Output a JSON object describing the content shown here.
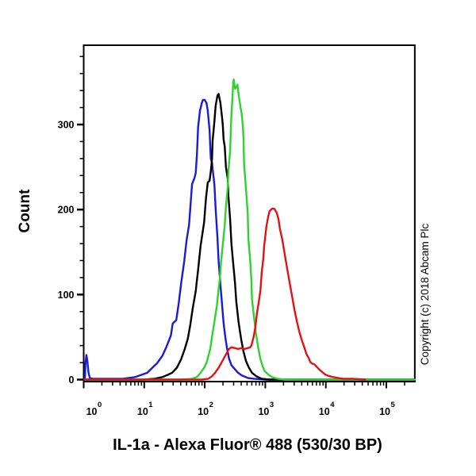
{
  "copyright": "Copyright (c) 2018 Abcam Plc",
  "chart_data": {
    "type": "line",
    "subtype": "flow-cytometry-histogram",
    "title": "",
    "xlabel": "IL-1a - Alexa Fluor® 488 (530/30 BP)",
    "ylabel": "Count",
    "x_scale": "log10",
    "xlim_log10": [
      0,
      5.47
    ],
    "ylim": [
      0,
      393
    ],
    "grid": false,
    "legend": "none",
    "x_ticks": [
      {
        "base": "10",
        "exp": "0"
      },
      {
        "base": "10",
        "exp": "1"
      },
      {
        "base": "10",
        "exp": "2"
      },
      {
        "base": "10",
        "exp": "3"
      },
      {
        "base": "10",
        "exp": "4"
      },
      {
        "base": "10",
        "exp": "5"
      }
    ],
    "y_ticks": [
      0,
      100,
      200,
      300
    ],
    "y_minor_step": 20,
    "frame_color": "#000000",
    "series": [
      {
        "name": "blue-curve",
        "color": "#1a1ad9",
        "peak": {
          "x_log10": 1.97,
          "count": 329
        },
        "points": [
          [
            0.02,
            0
          ],
          [
            0.03,
            20
          ],
          [
            0.045,
            29
          ],
          [
            0.06,
            22
          ],
          [
            0.08,
            8
          ],
          [
            0.1,
            2
          ],
          [
            0.15,
            1
          ],
          [
            0.45,
            1
          ],
          [
            0.65,
            1
          ],
          [
            0.85,
            3
          ],
          [
            1.05,
            8
          ],
          [
            1.15,
            15
          ],
          [
            1.21,
            19
          ],
          [
            1.3,
            28
          ],
          [
            1.37,
            39
          ],
          [
            1.44,
            52
          ],
          [
            1.47,
            66
          ],
          [
            1.5,
            68
          ],
          [
            1.53,
            70
          ],
          [
            1.57,
            90
          ],
          [
            1.61,
            113
          ],
          [
            1.66,
            139
          ],
          [
            1.7,
            164
          ],
          [
            1.74,
            182
          ],
          [
            1.76,
            201
          ],
          [
            1.79,
            230
          ],
          [
            1.83,
            237
          ],
          [
            1.85,
            243
          ],
          [
            1.87,
            264
          ],
          [
            1.89,
            297
          ],
          [
            1.92,
            316
          ],
          [
            1.95,
            325
          ],
          [
            1.97,
            329
          ],
          [
            2.0,
            329
          ],
          [
            2.03,
            325
          ],
          [
            2.05,
            316
          ],
          [
            2.08,
            293
          ],
          [
            2.09,
            274
          ],
          [
            2.1,
            260
          ],
          [
            2.12,
            255
          ],
          [
            2.13,
            248
          ],
          [
            2.16,
            229
          ],
          [
            2.18,
            201
          ],
          [
            2.21,
            167
          ],
          [
            2.23,
            139
          ],
          [
            2.26,
            111
          ],
          [
            2.29,
            85
          ],
          [
            2.31,
            67
          ],
          [
            2.34,
            50
          ],
          [
            2.37,
            36
          ],
          [
            2.4,
            25
          ],
          [
            2.44,
            17
          ],
          [
            2.5,
            12
          ],
          [
            2.55,
            8
          ],
          [
            2.61,
            5
          ],
          [
            2.71,
            2
          ],
          [
            2.81,
            1
          ],
          [
            3.01,
            0
          ],
          [
            5.47,
            0
          ]
        ]
      },
      {
        "name": "black-curve",
        "color": "#000000",
        "peak": {
          "x_log10": 2.22,
          "count": 336
        },
        "points": [
          [
            0.01,
            0
          ],
          [
            0.98,
            0
          ],
          [
            1.17,
            1
          ],
          [
            1.3,
            3
          ],
          [
            1.4,
            6
          ],
          [
            1.46,
            8
          ],
          [
            1.54,
            14
          ],
          [
            1.61,
            24
          ],
          [
            1.67,
            36
          ],
          [
            1.72,
            48
          ],
          [
            1.76,
            64
          ],
          [
            1.8,
            83
          ],
          [
            1.85,
            104
          ],
          [
            1.89,
            129
          ],
          [
            1.93,
            157
          ],
          [
            1.99,
            185
          ],
          [
            2.02,
            213
          ],
          [
            2.05,
            232
          ],
          [
            2.08,
            234
          ],
          [
            2.1,
            245
          ],
          [
            2.12,
            260
          ],
          [
            2.13,
            281
          ],
          [
            2.16,
            304
          ],
          [
            2.18,
            322
          ],
          [
            2.21,
            334
          ],
          [
            2.23,
            336
          ],
          [
            2.26,
            325
          ],
          [
            2.29,
            306
          ],
          [
            2.3,
            297
          ],
          [
            2.31,
            283
          ],
          [
            2.33,
            274
          ],
          [
            2.35,
            250
          ],
          [
            2.38,
            236
          ],
          [
            2.39,
            216
          ],
          [
            2.42,
            188
          ],
          [
            2.44,
            160
          ],
          [
            2.47,
            136
          ],
          [
            2.5,
            113
          ],
          [
            2.52,
            92
          ],
          [
            2.56,
            67
          ],
          [
            2.6,
            48
          ],
          [
            2.64,
            33
          ],
          [
            2.68,
            22
          ],
          [
            2.73,
            14
          ],
          [
            2.78,
            8
          ],
          [
            2.85,
            4
          ],
          [
            2.94,
            1
          ],
          [
            3.07,
            0
          ],
          [
            5.47,
            0
          ]
        ]
      },
      {
        "name": "green-curve",
        "color": "#2fd32f",
        "peak": {
          "x_log10": 2.48,
          "count": 353
        },
        "points": [
          [
            0.01,
            0
          ],
          [
            1.63,
            0
          ],
          [
            1.79,
            1
          ],
          [
            1.87,
            3
          ],
          [
            1.93,
            8
          ],
          [
            1.99,
            14
          ],
          [
            2.03,
            20
          ],
          [
            2.06,
            28
          ],
          [
            2.09,
            36
          ],
          [
            2.13,
            55
          ],
          [
            2.17,
            73
          ],
          [
            2.2,
            87
          ],
          [
            2.22,
            101
          ],
          [
            2.25,
            120
          ],
          [
            2.27,
            139
          ],
          [
            2.3,
            160
          ],
          [
            2.33,
            182
          ],
          [
            2.35,
            204
          ],
          [
            2.38,
            227
          ],
          [
            2.39,
            246
          ],
          [
            2.42,
            269
          ],
          [
            2.43,
            293
          ],
          [
            2.44,
            311
          ],
          [
            2.46,
            335
          ],
          [
            2.47,
            350
          ],
          [
            2.48,
            353
          ],
          [
            2.5,
            342
          ],
          [
            2.52,
            344
          ],
          [
            2.54,
            347
          ],
          [
            2.56,
            335
          ],
          [
            2.59,
            321
          ],
          [
            2.61,
            313
          ],
          [
            2.63,
            297
          ],
          [
            2.64,
            285
          ],
          [
            2.65,
            253
          ],
          [
            2.68,
            225
          ],
          [
            2.71,
            195
          ],
          [
            2.72,
            167
          ],
          [
            2.75,
            141
          ],
          [
            2.77,
            117
          ],
          [
            2.78,
            95
          ],
          [
            2.81,
            76
          ],
          [
            2.84,
            57
          ],
          [
            2.88,
            39
          ],
          [
            2.92,
            24
          ],
          [
            2.96,
            15
          ],
          [
            2.99,
            10
          ],
          [
            3.05,
            6
          ],
          [
            3.11,
            3
          ],
          [
            3.2,
            1
          ],
          [
            3.34,
            0
          ],
          [
            5.47,
            0
          ]
        ]
      },
      {
        "name": "red-curve",
        "color": "#e11212",
        "peak": {
          "x_log10": 3.13,
          "count": 201
        },
        "points": [
          [
            0.01,
            0
          ],
          [
            1.96,
            0
          ],
          [
            2.06,
            1
          ],
          [
            2.12,
            4
          ],
          [
            2.17,
            8
          ],
          [
            2.22,
            13
          ],
          [
            2.27,
            19
          ],
          [
            2.33,
            27
          ],
          [
            2.37,
            32
          ],
          [
            2.4,
            36
          ],
          [
            2.44,
            38
          ],
          [
            2.5,
            37
          ],
          [
            2.55,
            36
          ],
          [
            2.6,
            37
          ],
          [
            2.65,
            36
          ],
          [
            2.71,
            37
          ],
          [
            2.75,
            38
          ],
          [
            2.77,
            40
          ],
          [
            2.81,
            51
          ],
          [
            2.84,
            64
          ],
          [
            2.86,
            77
          ],
          [
            2.89,
            90
          ],
          [
            2.92,
            105
          ],
          [
            2.94,
            125
          ],
          [
            2.97,
            144
          ],
          [
            2.98,
            157
          ],
          [
            2.99,
            162
          ],
          [
            3.02,
            181
          ],
          [
            3.05,
            192
          ],
          [
            3.07,
            198
          ],
          [
            3.11,
            201
          ],
          [
            3.15,
            201
          ],
          [
            3.19,
            196
          ],
          [
            3.22,
            188
          ],
          [
            3.24,
            178
          ],
          [
            3.28,
            165
          ],
          [
            3.32,
            148
          ],
          [
            3.36,
            131
          ],
          [
            3.4,
            115
          ],
          [
            3.44,
            99
          ],
          [
            3.48,
            83
          ],
          [
            3.52,
            69
          ],
          [
            3.56,
            57
          ],
          [
            3.6,
            47
          ],
          [
            3.64,
            39
          ],
          [
            3.68,
            30
          ],
          [
            3.72,
            25
          ],
          [
            3.74,
            21
          ],
          [
            3.77,
            19
          ],
          [
            3.81,
            18
          ],
          [
            3.85,
            15
          ],
          [
            3.89,
            12
          ],
          [
            3.94,
            9
          ],
          [
            3.99,
            6
          ],
          [
            4.06,
            4
          ],
          [
            4.12,
            3
          ],
          [
            4.2,
            2
          ],
          [
            4.29,
            1
          ],
          [
            4.45,
            1
          ],
          [
            4.65,
            0
          ]
        ]
      }
    ]
  }
}
